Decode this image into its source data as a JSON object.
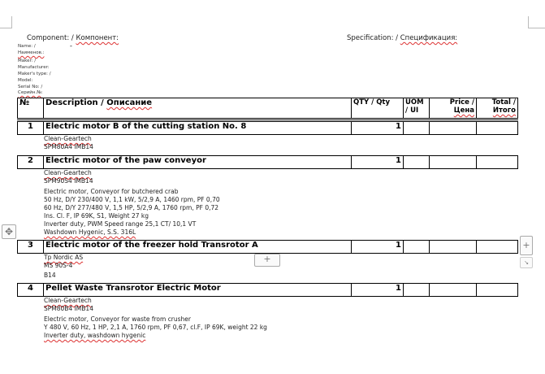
{
  "header": {
    "component": "Component: / ",
    "component_ru": "Компонент:",
    "specification": "Specification: / ",
    "specification_ru": "Спецификация:"
  },
  "meta": [
    "Name: /",
    "Наименов.:",
    "Maker: /",
    "Manufacturer:",
    "Maker's type: /",
    "Model:",
    "Serial No: /",
    "Серийн.№:"
  ],
  "name_value": "-",
  "table": {
    "columns": [
      "№",
      "Description / Описание",
      "QTY / Qty",
      "UOM / UI",
      "Price / Цена",
      "Total / Итого"
    ],
    "items": [
      {
        "no": "1",
        "title": "Electric motor B of the cutting station No. 8",
        "qty": "1",
        "details": [
          "Clean-Geartech",
          "SPM80A4 IMB14"
        ]
      },
      {
        "no": "2",
        "title": "Electric motor of the paw conveyor",
        "qty": "1",
        "details": [
          "Clean-Geartech",
          "SPM90S4 IMB14",
          "Electric motor, Conveyor for butchered crab",
          "50 Hz, D/Y 230/400 V, 1,1 kW, 5/2,9 A, 1460 rpm, PF 0,70",
          "60 Hz, D/Y 277/480 V, 1,5 HP, 5/2,9 A, 1760 rpm, PF 0,72",
          "Ins. Cl. F, IP 69K, S1, Weight 27 kg",
          "Inverter duty, PWM Speed range 25,1 CT/ 10,1 VT",
          "Washdown Hygenic, S.S. 316L"
        ]
      },
      {
        "no": "3",
        "title": "Electric motor of the freezer hold Transrotor A",
        "qty": "1",
        "details": [
          "Tp Nordic AS",
          "MS 90S-4",
          "B14"
        ]
      },
      {
        "no": "4",
        "title": "Pellet Waste Transrotor Electric Motor",
        "qty": "1",
        "details": [
          "Clean-Geartech",
          "SPM80B4 IMB14",
          "Electric motor, Conveyor for waste from crusher",
          "Y 480 V, 60 Hz, 1 HP, 2,1 A, 1760 rpm, PF 0,67, cl.F, IP 69K, weight 22 kg",
          "Inverter duty, washdown hygenic"
        ]
      }
    ]
  },
  "controls": {
    "add": "+",
    "move": "✥",
    "resize": "↘"
  }
}
